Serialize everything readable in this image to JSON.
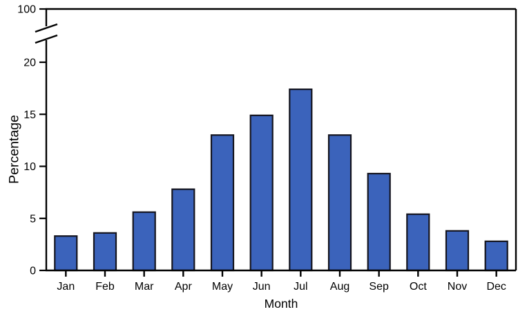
{
  "chart_data": {
    "type": "bar",
    "title": "",
    "xlabel": "Month",
    "ylabel": "Percentage",
    "categories": [
      "Jan",
      "Feb",
      "Mar",
      "Apr",
      "May",
      "Jun",
      "Jul",
      "Aug",
      "Sep",
      "Oct",
      "Nov",
      "Dec"
    ],
    "values": [
      3.3,
      3.6,
      5.6,
      7.8,
      13.0,
      14.9,
      17.4,
      13.0,
      9.3,
      5.4,
      3.8,
      2.8
    ],
    "y_ticks": [
      0,
      5,
      10,
      15,
      20
    ],
    "y_axis_break": true,
    "y_axis_top_label": "100",
    "ylim": [
      0,
      20
    ],
    "grid": false,
    "legend": "none",
    "colors": {
      "bar_fill": "#3B63BB",
      "bar_stroke": "#14141E",
      "axis": "#000000",
      "background": "#FFFFFF",
      "text": "#000000"
    }
  }
}
